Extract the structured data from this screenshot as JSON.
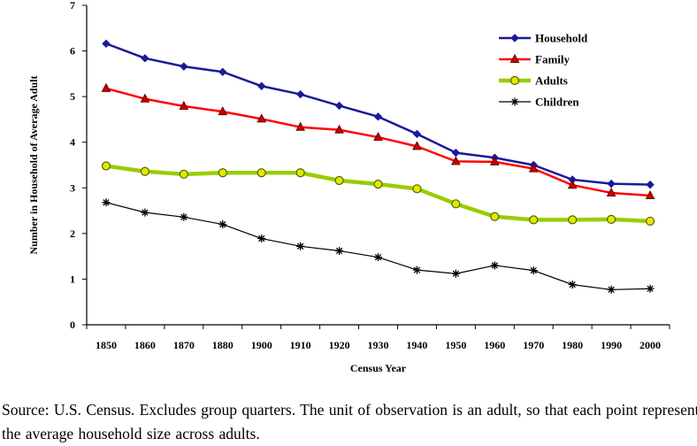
{
  "chart_data": {
    "type": "line",
    "title": "",
    "xlabel": "Census Year",
    "ylabel": "Number in Household of Average Adult",
    "ylim": [
      0,
      7
    ],
    "yticks": [
      0,
      1,
      2,
      3,
      4,
      5,
      6,
      7
    ],
    "categories": [
      "1850",
      "1860",
      "1870",
      "1880",
      "1900",
      "1910",
      "1920",
      "1930",
      "1940",
      "1950",
      "1960",
      "1970",
      "1980",
      "1990",
      "2000"
    ],
    "legend_position": "top-right",
    "grid": false,
    "series": [
      {
        "name": "Household",
        "color": "#1a1a99",
        "marker": "diamond",
        "values": [
          6.16,
          5.84,
          5.66,
          5.54,
          5.23,
          5.05,
          4.8,
          4.56,
          4.18,
          3.77,
          3.66,
          3.5,
          3.18,
          3.09,
          3.07
        ]
      },
      {
        "name": "Family",
        "color": "#ff0000",
        "marker": "triangle",
        "values": [
          5.18,
          4.95,
          4.79,
          4.67,
          4.51,
          4.33,
          4.27,
          4.11,
          3.91,
          3.58,
          3.57,
          3.42,
          3.06,
          2.89,
          2.83
        ]
      },
      {
        "name": "Adults",
        "color": "#99cc00",
        "marker": "circle",
        "values": [
          3.48,
          3.36,
          3.3,
          3.33,
          3.33,
          3.33,
          3.16,
          3.08,
          2.98,
          2.65,
          2.37,
          2.3,
          2.3,
          2.31,
          2.27
        ]
      },
      {
        "name": "Children",
        "color": "#000000",
        "marker": "star",
        "values": [
          2.68,
          2.46,
          2.36,
          2.2,
          1.89,
          1.72,
          1.62,
          1.48,
          1.2,
          1.12,
          1.3,
          1.19,
          0.88,
          0.77,
          0.79
        ]
      }
    ]
  },
  "caption": "Source: U.S. Census.  Excludes group quarters.  The unit of observation is an adult, so that each point represents the average household size across adults."
}
